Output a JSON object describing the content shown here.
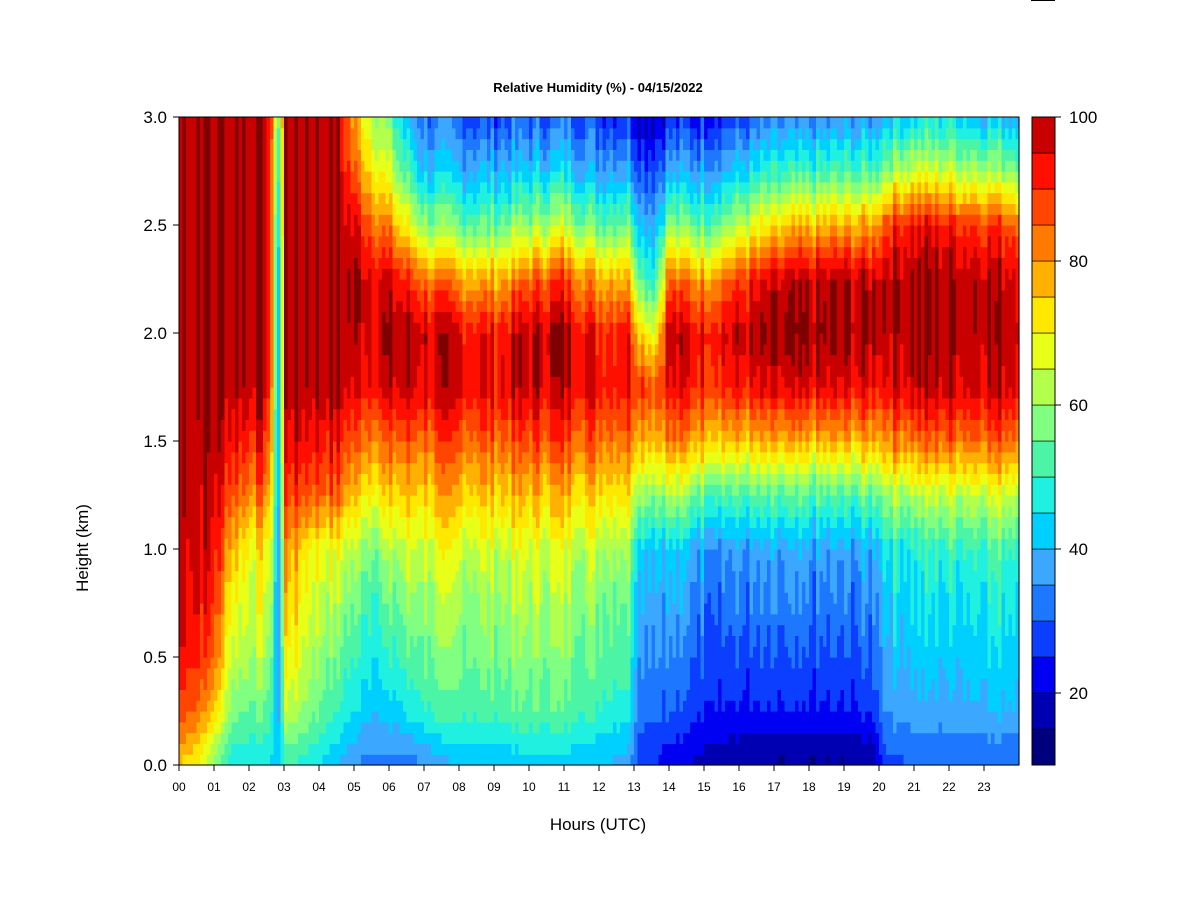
{
  "chart_data": {
    "type": "heatmap",
    "title": "Relative Humidity (%) - 04/15/2022",
    "xlabel": "Hours (UTC)",
    "ylabel": "Height (km)",
    "x_ticks": [
      "00",
      "01",
      "02",
      "03",
      "04",
      "05",
      "06",
      "07",
      "08",
      "09",
      "10",
      "11",
      "12",
      "13",
      "14",
      "15",
      "16",
      "17",
      "18",
      "19",
      "20",
      "21",
      "22",
      "23"
    ],
    "y_ticks": [
      "0.0",
      "0.5",
      "1.0",
      "1.5",
      "2.0",
      "2.5",
      "3.0"
    ],
    "xlim": [
      0,
      24
    ],
    "ylim": [
      0,
      3.0
    ],
    "colorbar": {
      "min": 10,
      "max": 100,
      "step": 5,
      "ticks": [
        "20",
        "40",
        "60",
        "80",
        "100"
      ],
      "colors": [
        "#00007f",
        "#0000b2",
        "#0000f2",
        "#0b3eff",
        "#1e78ff",
        "#3ca7ff",
        "#00d0ff",
        "#1ff0e0",
        "#4cf5a6",
        "#80ff80",
        "#b2ff4c",
        "#e8ff18",
        "#ffe800",
        "#ffb000",
        "#ff7a00",
        "#ff4500",
        "#ff0f00",
        "#c80000",
        "#7f0000"
      ]
    },
    "values_note_units": "percent",
    "profiles": [
      {
        "hour": 0.0,
        "rh": [
          75,
          88,
          95,
          98,
          99,
          100,
          100,
          100,
          100,
          100,
          100,
          100,
          100
        ]
      },
      {
        "hour": 0.5,
        "rh": [
          70,
          85,
          92,
          96,
          98,
          100,
          100,
          100,
          100,
          100,
          100,
          100,
          100
        ]
      },
      {
        "hour": 1.0,
        "rh": [
          58,
          75,
          85,
          90,
          94,
          97,
          99,
          100,
          100,
          100,
          100,
          100,
          100
        ]
      },
      {
        "hour": 1.5,
        "rh": [
          45,
          58,
          65,
          70,
          78,
          88,
          95,
          100,
          100,
          100,
          100,
          100,
          100
        ]
      },
      {
        "hour": 2.0,
        "rh": [
          45,
          55,
          62,
          66,
          70,
          82,
          92,
          100,
          100,
          100,
          100,
          100,
          100
        ]
      },
      {
        "hour": 2.5,
        "rh": [
          45,
          55,
          62,
          68,
          72,
          85,
          93,
          100,
          100,
          100,
          100,
          100,
          100
        ]
      },
      {
        "hour": 2.9,
        "rh": [
          40,
          38,
          36,
          35,
          35,
          35,
          35,
          35,
          35,
          35,
          40,
          45,
          50
        ]
      },
      {
        "hour": 3.0,
        "rh": [
          50,
          65,
          72,
          78,
          82,
          90,
          96,
          100,
          100,
          100,
          100,
          100,
          100
        ]
      },
      {
        "hour": 3.5,
        "rh": [
          48,
          60,
          66,
          70,
          74,
          88,
          95,
          100,
          100,
          100,
          100,
          100,
          100
        ]
      },
      {
        "hour": 4.0,
        "rh": [
          45,
          55,
          60,
          65,
          70,
          86,
          94,
          100,
          100,
          100,
          100,
          100,
          100
        ]
      },
      {
        "hour": 4.5,
        "rh": [
          40,
          50,
          56,
          62,
          68,
          85,
          93,
          100,
          100,
          100,
          100,
          100,
          100
        ]
      },
      {
        "hour": 5.0,
        "rh": [
          35,
          45,
          50,
          55,
          62,
          75,
          85,
          95,
          98,
          100,
          95,
          85,
          78
        ]
      },
      {
        "hour": 5.5,
        "rh": [
          33,
          42,
          48,
          53,
          60,
          73,
          85,
          96,
          99,
          98,
          88,
          75,
          65
        ]
      },
      {
        "hour": 6.0,
        "rh": [
          32,
          42,
          48,
          53,
          60,
          72,
          84,
          96,
          100,
          95,
          80,
          65,
          55
        ]
      },
      {
        "hour": 6.5,
        "rh": [
          32,
          45,
          52,
          58,
          65,
          75,
          86,
          97,
          100,
          90,
          70,
          52,
          40
        ]
      },
      {
        "hour": 7.0,
        "rh": [
          35,
          50,
          56,
          60,
          66,
          75,
          85,
          96,
          98,
          85,
          60,
          42,
          32
        ]
      },
      {
        "hour": 8.0,
        "rh": [
          40,
          52,
          57,
          60,
          66,
          76,
          86,
          96,
          95,
          80,
          55,
          40,
          30
        ]
      },
      {
        "hour": 9.0,
        "rh": [
          40,
          52,
          57,
          60,
          65,
          75,
          85,
          95,
          92,
          78,
          55,
          40,
          28
        ]
      },
      {
        "hour": 10.0,
        "rh": [
          42,
          54,
          58,
          62,
          66,
          76,
          87,
          97,
          98,
          85,
          60,
          42,
          30
        ]
      },
      {
        "hour": 11.0,
        "rh": [
          42,
          54,
          58,
          62,
          66,
          77,
          88,
          98,
          100,
          90,
          65,
          45,
          32
        ]
      },
      {
        "hour": 12.0,
        "rh": [
          40,
          50,
          55,
          58,
          64,
          74,
          85,
          95,
          92,
          78,
          55,
          38,
          28
        ]
      },
      {
        "hour": 12.8,
        "rh": [
          38,
          48,
          54,
          57,
          63,
          74,
          85,
          95,
          95,
          80,
          58,
          40,
          28
        ]
      },
      {
        "hour": 13.2,
        "rh": [
          25,
          32,
          36,
          40,
          44,
          62,
          80,
          92,
          75,
          55,
          42,
          30,
          20
        ]
      },
      {
        "hour": 13.6,
        "rh": [
          25,
          32,
          36,
          40,
          44,
          60,
          78,
          88,
          70,
          50,
          40,
          30,
          20
        ]
      },
      {
        "hour": 14.0,
        "rh": [
          22,
          30,
          34,
          38,
          42,
          62,
          82,
          94,
          98,
          85,
          58,
          38,
          25
        ]
      },
      {
        "hour": 15.0,
        "rh": [
          18,
          26,
          30,
          34,
          38,
          55,
          78,
          92,
          95,
          80,
          55,
          38,
          25
        ]
      },
      {
        "hour": 16.0,
        "rh": [
          15,
          24,
          28,
          32,
          36,
          52,
          75,
          92,
          97,
          88,
          62,
          42,
          28
        ]
      },
      {
        "hour": 17.0,
        "rh": [
          14,
          24,
          28,
          32,
          36,
          52,
          76,
          93,
          100,
          95,
          72,
          48,
          32
        ]
      },
      {
        "hour": 18.0,
        "rh": [
          14,
          24,
          28,
          32,
          36,
          52,
          76,
          94,
          100,
          97,
          75,
          50,
          33
        ]
      },
      {
        "hour": 19.0,
        "rh": [
          14,
          24,
          28,
          32,
          36,
          52,
          76,
          94,
          100,
          98,
          78,
          52,
          35
        ]
      },
      {
        "hour": 19.8,
        "rh": [
          15,
          26,
          30,
          34,
          38,
          54,
          78,
          94,
          100,
          98,
          78,
          52,
          35
        ]
      },
      {
        "hour": 20.2,
        "rh": [
          28,
          36,
          40,
          44,
          48,
          62,
          82,
          96,
          100,
          100,
          90,
          60,
          42
        ]
      },
      {
        "hour": 21.0,
        "rh": [
          30,
          38,
          42,
          45,
          48,
          62,
          84,
          98,
          100,
          100,
          95,
          65,
          45
        ]
      },
      {
        "hour": 22.0,
        "rh": [
          30,
          38,
          42,
          45,
          50,
          64,
          85,
          98,
          100,
          100,
          93,
          65,
          45
        ]
      },
      {
        "hour": 23.0,
        "rh": [
          30,
          40,
          44,
          48,
          52,
          66,
          86,
          98,
          100,
          100,
          90,
          62,
          42
        ]
      },
      {
        "hour": 23.9,
        "rh": [
          30,
          40,
          44,
          48,
          52,
          66,
          86,
          98,
          100,
          98,
          88,
          60,
          40
        ]
      }
    ],
    "profile_heights": [
      0.0,
      0.25,
      0.5,
      0.75,
      1.0,
      1.25,
      1.5,
      1.75,
      2.0,
      2.25,
      2.5,
      2.75,
      3.0
    ]
  }
}
